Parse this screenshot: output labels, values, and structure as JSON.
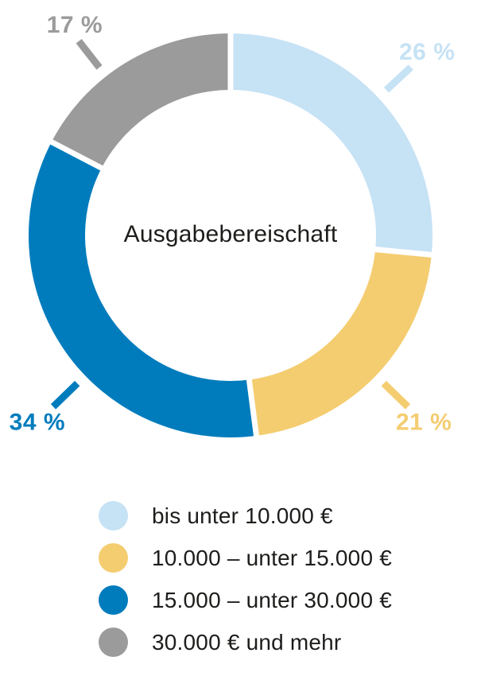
{
  "chart_data": {
    "type": "donut",
    "center_label": "Ausgabebereischaft",
    "legend_position": "bottom-left",
    "background": "#ffffff",
    "text_color": "#1d1d1b",
    "start_angle_deg": 0,
    "values_sum_shown": 98,
    "segments": [
      {
        "label": "bis unter 10.000 €",
        "value_pct": 26,
        "pct_label": "26 %",
        "color": "#c6e2f5",
        "label_angle_deg": 47
      },
      {
        "label": "10.000 – unter 15.000 €",
        "value_pct": 21,
        "pct_label": "21 %",
        "color": "#f4cd70",
        "label_angle_deg": 134
      },
      {
        "label": "15.000 – unter 30.000 €",
        "value_pct": 34,
        "pct_label": "34 %",
        "color": "#007cbd",
        "label_angle_deg": 226
      },
      {
        "label": "30.000 € und mehr",
        "value_pct": 17,
        "pct_label": "17 %",
        "color": "#9b9b9b",
        "label_angle_deg": 322,
        "label_dx": 12,
        "label_dy": 2
      }
    ]
  }
}
